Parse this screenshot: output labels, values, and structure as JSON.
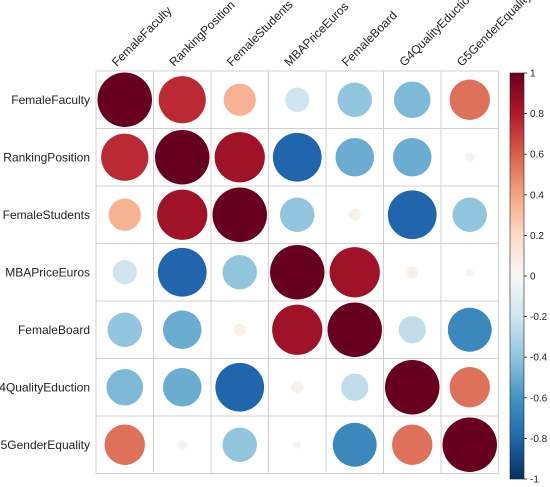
{
  "chart_data": {
    "type": "heatmap",
    "style": "circle correlation matrix",
    "variables": [
      "FemaleFaculty",
      "RankingPosition",
      "FemaleStudents",
      "MBAPriceEuros",
      "FemaleBoard",
      "G4QualityEduction",
      "G5GenderEquality"
    ],
    "matrix": [
      [
        1.0,
        0.75,
        0.35,
        -0.2,
        -0.4,
        -0.45,
        0.55
      ],
      [
        0.75,
        1.0,
        0.85,
        -0.8,
        -0.5,
        -0.5,
        0.03
      ],
      [
        0.35,
        0.85,
        1.0,
        -0.4,
        0.05,
        -0.8,
        -0.4
      ],
      [
        -0.2,
        -0.8,
        -0.4,
        1.0,
        0.85,
        0.05,
        -0.02
      ],
      [
        -0.4,
        -0.5,
        0.05,
        0.85,
        1.0,
        -0.25,
        -0.65
      ],
      [
        -0.45,
        -0.5,
        -0.8,
        0.05,
        -0.25,
        1.0,
        0.55
      ],
      [
        0.55,
        0.03,
        -0.4,
        -0.02,
        -0.65,
        0.55,
        1.0
      ]
    ],
    "colorbar": {
      "range": [
        -1,
        1
      ],
      "ticks": [
        "1",
        "0.8",
        "0.6",
        "0.4",
        "0.2",
        "0",
        "-0.2",
        "-0.4",
        "-0.6",
        "-0.8",
        "-1"
      ],
      "low_color": "#053061",
      "mid_color": "#f7f7f7",
      "high_color": "#67001f"
    },
    "grid": true,
    "legend": "right"
  }
}
